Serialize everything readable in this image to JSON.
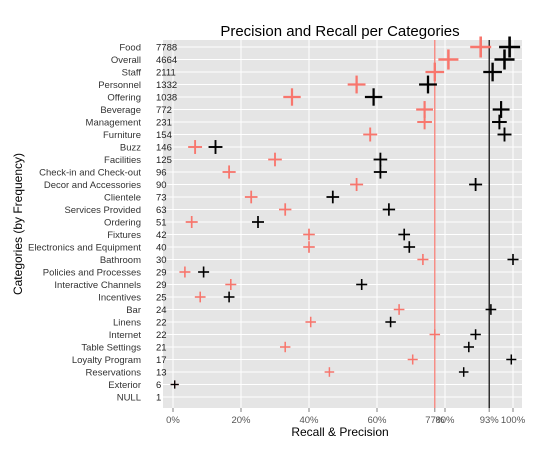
{
  "chart_data": {
    "type": "scatter",
    "title": "Precision and Recall per Categories",
    "xlabel": "Recall & Precision",
    "ylabel": "Categories (by Frequency)",
    "xlim": [
      0,
      100
    ],
    "x_ticks": [
      "0%",
      "20%",
      "40%",
      "60%",
      "77%",
      "80%",
      "93%",
      "100%"
    ],
    "x_tick_values": [
      0,
      20,
      40,
      60,
      77,
      80,
      93,
      100
    ],
    "reference_lines": [
      {
        "value": 77,
        "color": "#F8766D"
      },
      {
        "value": 93,
        "color": "#000000"
      }
    ],
    "grid": true,
    "colors": {
      "recall": "#F8766D",
      "precision": "#000000",
      "panel": "#E5E5E5"
    },
    "categories": [
      {
        "name": "Food",
        "count": "7788",
        "recall": 90.5,
        "precision": 99.0,
        "weight": 7788
      },
      {
        "name": "Overall",
        "count": "4664",
        "recall": 81.0,
        "precision": 97.5,
        "weight": 4664
      },
      {
        "name": "Staff",
        "count": "2111",
        "recall": 77.0,
        "precision": 94.0,
        "weight": 2111
      },
      {
        "name": "Personnel",
        "count": "1332",
        "recall": 54.0,
        "precision": 75.0,
        "weight": 1332
      },
      {
        "name": "Offering",
        "count": "1038",
        "recall": 35.0,
        "precision": 59.0,
        "weight": 1038
      },
      {
        "name": "Beverage",
        "count": "772",
        "recall": 74.0,
        "precision": 96.5,
        "weight": 772
      },
      {
        "name": "Management",
        "count": "231",
        "recall": 74.0,
        "precision": 96.0,
        "weight": 231
      },
      {
        "name": "Furniture",
        "count": "154",
        "recall": 58.0,
        "precision": 97.5,
        "weight": 154
      },
      {
        "name": "Buzz",
        "count": "146",
        "recall": 6.5,
        "precision": 12.5,
        "weight": 146
      },
      {
        "name": "Facilities",
        "count": "125",
        "recall": 30.0,
        "precision": 61.0,
        "weight": 125
      },
      {
        "name": "Check-in and Check-out",
        "count": "96",
        "recall": 16.5,
        "precision": 61.0,
        "weight": 96
      },
      {
        "name": "Decor and Accessories",
        "count": "90",
        "recall": 54.0,
        "precision": 89.0,
        "weight": 90
      },
      {
        "name": "Clientele",
        "count": "73",
        "recall": 23.0,
        "precision": 47.0,
        "weight": 73
      },
      {
        "name": "Services Provided",
        "count": "63",
        "recall": 33.0,
        "precision": 63.5,
        "weight": 63
      },
      {
        "name": "Ordering",
        "count": "51",
        "recall": 5.5,
        "precision": 25.0,
        "weight": 51
      },
      {
        "name": "Fixtures",
        "count": "42",
        "recall": 40.0,
        "precision": 68.0,
        "weight": 42
      },
      {
        "name": "Electronics and Equipment",
        "count": "40",
        "recall": 40.0,
        "precision": 69.5,
        "weight": 40
      },
      {
        "name": "Bathroom",
        "count": "30",
        "recall": 73.5,
        "precision": 100.0,
        "weight": 30
      },
      {
        "name": "Policies and Processes",
        "count": "29",
        "recall": 3.5,
        "precision": 9.0,
        "weight": 29
      },
      {
        "name": "Interactive Channels",
        "count": "29",
        "recall": 17.0,
        "precision": 55.5,
        "weight": 29
      },
      {
        "name": "Incentives",
        "count": "25",
        "recall": 8.0,
        "precision": 16.5,
        "weight": 25
      },
      {
        "name": "Bar",
        "count": "24",
        "recall": 66.5,
        "precision": 93.5,
        "weight": 24
      },
      {
        "name": "Linens",
        "count": "22",
        "recall": 40.5,
        "precision": 64.0,
        "weight": 22
      },
      {
        "name": "Internet",
        "count": "22",
        "recall": 77.0,
        "precision": 89.0,
        "weight": 22
      },
      {
        "name": "Table Settings",
        "count": "21",
        "recall": 33.0,
        "precision": 87.0,
        "weight": 21
      },
      {
        "name": "Loyalty Program",
        "count": "17",
        "recall": 70.5,
        "precision": 99.5,
        "weight": 17
      },
      {
        "name": "Reservations",
        "count": "13",
        "recall": 46.0,
        "precision": 85.5,
        "weight": 13
      },
      {
        "name": "Exterior",
        "count": "6",
        "recall": 0.5,
        "precision": 0.5,
        "weight": 6
      },
      {
        "name": "NULL",
        "count": "1",
        "recall": null,
        "precision": null,
        "weight": 1
      }
    ]
  }
}
